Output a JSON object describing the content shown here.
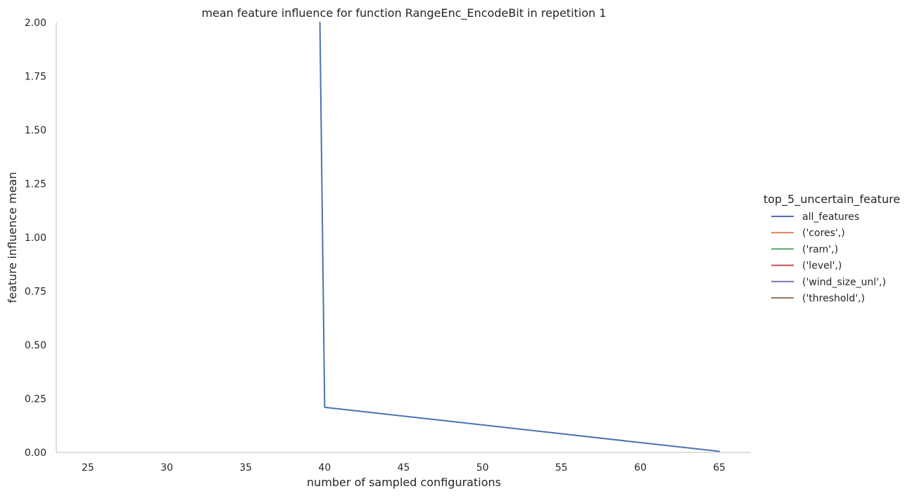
{
  "chart_data": {
    "type": "line",
    "title": "mean feature influence for function RangeEnc_EncodeBit in repetition 1",
    "xlabel": "number of sampled configurations",
    "ylabel": "feature influence mean",
    "xlim": [
      23,
      67
    ],
    "ylim": [
      0,
      2.0
    ],
    "x_ticks": [
      25,
      30,
      35,
      40,
      45,
      50,
      55,
      60,
      65
    ],
    "y_ticks": [
      0,
      0.25,
      0.5,
      0.75,
      1.0,
      1.25,
      1.5,
      1.75,
      2.0
    ],
    "y_tick_labels": [
      "0.00",
      "0.25",
      "0.50",
      "0.75",
      "1.00",
      "1.25",
      "1.50",
      "1.75",
      "2.00"
    ],
    "grid": false,
    "legend": {
      "title": "top_5_uncertain_feature",
      "placement": "right"
    },
    "series": [
      {
        "name": "all_features",
        "color": "#4c72b0",
        "x": [
          39.7,
          40.0,
          65.0
        ],
        "y": [
          2.0,
          0.21,
          0.005
        ]
      },
      {
        "name": "('cores',)",
        "color": "#dd8452",
        "x": [],
        "y": []
      },
      {
        "name": "('ram',)",
        "color": "#55a868",
        "x": [],
        "y": []
      },
      {
        "name": "('level',)",
        "color": "#c44e52",
        "x": [],
        "y": []
      },
      {
        "name": "('wind_size_unl',)",
        "color": "#8172b3",
        "x": [],
        "y": []
      },
      {
        "name": "('threshold',)",
        "color": "#937860",
        "x": [],
        "y": []
      }
    ]
  }
}
